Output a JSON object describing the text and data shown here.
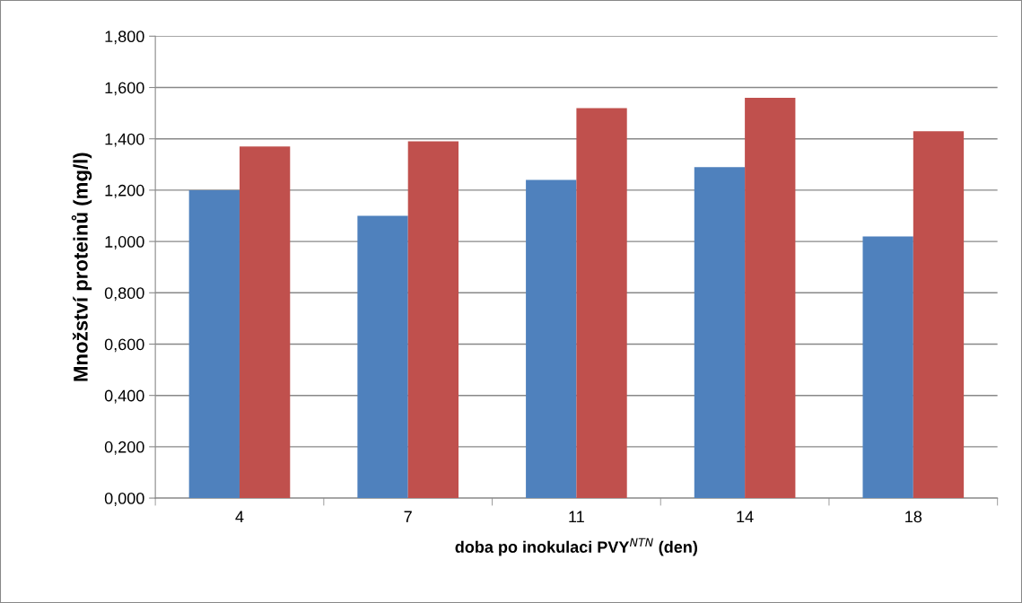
{
  "chart_data": {
    "type": "bar",
    "ylabel": "Množství proteinů (mg/l)",
    "xlabel": "doba po inokulaci PVY$^{NTN}$ (den)",
    "categories": [
      "4",
      "7",
      "11",
      "14",
      "18"
    ],
    "series": [
      {
        "color": "#4f81bd",
        "values": [
          1.2,
          1.1,
          1.24,
          1.29,
          1.02
        ]
      },
      {
        "color": "#c0504d",
        "values": [
          1.37,
          1.39,
          1.52,
          1.56,
          1.43
        ]
      }
    ],
    "ylim": [
      0,
      1.8
    ],
    "yticks": [
      {
        "value": 0,
        "label": "0,000"
      },
      {
        "value": 0.2,
        "label": "0,200"
      },
      {
        "value": 0.4,
        "label": "0,400"
      },
      {
        "value": 0.6,
        "label": "0,600"
      },
      {
        "value": 0.8,
        "label": "0,800"
      },
      {
        "value": 1.0,
        "label": "1,000"
      },
      {
        "value": 1.2,
        "label": "1,200"
      },
      {
        "value": 1.4,
        "label": "1,400"
      },
      {
        "value": 1.6,
        "label": "1,600"
      },
      {
        "value": 1.8,
        "label": "1,800"
      }
    ],
    "grid": "y"
  }
}
